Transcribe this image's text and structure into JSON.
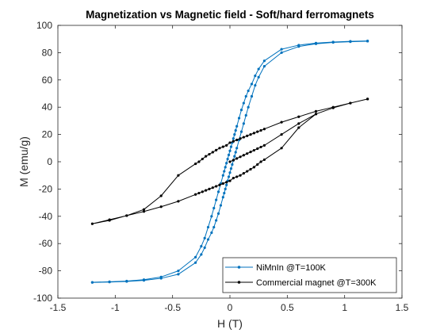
{
  "chart_data": {
    "type": "line",
    "title": "Magnetization vs Magnetic field - Soft/hard ferromagnets",
    "xlabel": "H (T)",
    "ylabel": "M (emu/g)",
    "xlim": [
      -1.5,
      1.5
    ],
    "ylim": [
      -100,
      100
    ],
    "xticks": [
      -1.5,
      -1,
      -0.5,
      0,
      0.5,
      1,
      1.5
    ],
    "xtick_labels": [
      "-1.5",
      "-1",
      "-0.5",
      "0",
      "0.5",
      "1",
      "1.5"
    ],
    "yticks": [
      -100,
      -80,
      -60,
      -40,
      -20,
      0,
      20,
      40,
      60,
      80,
      100
    ],
    "ytick_labels": [
      "-100",
      "-80",
      "-60",
      "-40",
      "-20",
      "0",
      "20",
      "40",
      "60",
      "80",
      "100"
    ],
    "grid": false,
    "legend_position": "bottom-right",
    "series": [
      {
        "name": "NiMnIn @T=100K",
        "color": "#0072BD",
        "marker_size": 1.6,
        "x": [
          -1.2,
          -1.05,
          -0.9,
          -0.75,
          -0.6,
          -0.45,
          -0.3,
          -0.25,
          -0.22,
          -0.19,
          -0.16,
          -0.14,
          -0.12,
          -0.1,
          -0.08,
          -0.06,
          -0.05,
          -0.04,
          -0.03,
          -0.02,
          -0.01,
          0,
          0.01,
          0.02,
          0.03,
          0.04,
          0.05,
          0.06,
          0.08,
          0.1,
          0.12,
          0.14,
          0.16,
          0.19,
          0.22,
          0.25,
          0.3,
          0.45,
          0.6,
          0.75,
          0.9,
          1.05,
          1.2,
          1.2,
          1.05,
          0.9,
          0.75,
          0.6,
          0.45,
          0.3,
          0.25,
          0.22,
          0.19,
          0.16,
          0.14,
          0.12,
          0.1,
          0.08,
          0.06,
          0.05,
          0.04,
          0.03,
          0.02,
          0.01,
          0,
          -0.01,
          -0.02,
          -0.03,
          -0.04,
          -0.05,
          -0.06,
          -0.08,
          -0.1,
          -0.12,
          -0.14,
          -0.16,
          -0.19,
          -0.22,
          -0.25,
          -0.3,
          -0.45,
          -0.6,
          -0.75,
          -0.9,
          -1.05,
          -1.2
        ],
        "y": [
          -88.5,
          -88.2,
          -87.8,
          -87,
          -85.5,
          -82.5,
          -74,
          -68,
          -63,
          -57,
          -52,
          -48,
          -43,
          -38,
          -32,
          -26,
          -23,
          -20,
          -17,
          -14,
          -11,
          -8,
          -5,
          -2,
          1,
          4,
          7,
          10,
          16,
          22,
          28,
          34,
          40,
          48,
          56,
          62,
          70,
          80,
          84.5,
          86.5,
          87.5,
          88,
          88.4,
          88.6,
          88.3,
          87.8,
          87,
          85.5,
          82.5,
          74,
          68,
          63,
          57,
          52,
          48,
          43,
          38,
          32,
          26,
          23,
          20,
          17,
          14,
          11,
          8,
          5,
          2,
          -1,
          -4,
          -7,
          -10,
          -16,
          -22,
          -28,
          -34,
          -40,
          -48,
          -56,
          -62,
          -70,
          -80,
          -84.5,
          -86.5,
          -87.5,
          -88,
          -88.4
        ]
      },
      {
        "name": "Commercial magnet @T=300K",
        "color": "#000000",
        "marker_size": 1.6,
        "x": [
          0,
          0.03,
          0.06,
          0.09,
          0.12,
          0.15,
          0.18,
          0.21,
          0.24,
          0.27,
          0.3,
          0.45,
          0.6,
          0.75,
          0.9,
          1.05,
          1.2,
          1.05,
          0.9,
          0.75,
          0.6,
          0.45,
          0.3,
          0.27,
          0.24,
          0.21,
          0.18,
          0.15,
          0.12,
          0.09,
          0.06,
          0.03,
          0,
          -0.03,
          -0.06,
          -0.09,
          -0.12,
          -0.15,
          -0.18,
          -0.21,
          -0.24,
          -0.27,
          -0.3,
          -0.45,
          -0.6,
          -0.75,
          -0.9,
          -1.05,
          -1.2,
          -1.05,
          -0.9,
          -0.75,
          -0.6,
          -0.45,
          -0.3,
          -0.27,
          -0.24,
          -0.21,
          -0.18,
          -0.15,
          -0.12,
          -0.09,
          -0.06,
          -0.03,
          0,
          0.03,
          0.06,
          0.09,
          0.12,
          0.15,
          0.18,
          0.21,
          0.24,
          0.27,
          0.3,
          0.45,
          0.6,
          0.75,
          0.9,
          1.05,
          1.2
        ],
        "y": [
          0,
          1.2,
          2.4,
          3.6,
          4.8,
          6,
          7.2,
          8.4,
          9.6,
          10.8,
          12,
          20,
          28,
          35,
          39.5,
          43,
          46,
          43,
          40,
          37,
          33,
          29,
          24,
          23,
          22,
          21,
          20,
          19,
          18,
          17,
          16,
          15,
          14,
          12,
          11,
          10,
          8.5,
          7,
          5.5,
          4,
          2,
          0,
          -1.5,
          -10,
          -25,
          -35,
          -39.5,
          -43,
          -45.5,
          -42.5,
          -39.5,
          -36.5,
          -33,
          -29,
          -24,
          -23,
          -22,
          -21,
          -20,
          -19,
          -18,
          -17,
          -16,
          -15,
          -14,
          -12,
          -11,
          -10,
          -8.5,
          -7,
          -5.5,
          -4,
          -2,
          0,
          1.5,
          10,
          25,
          35,
          39.5,
          43,
          46
        ]
      }
    ]
  }
}
